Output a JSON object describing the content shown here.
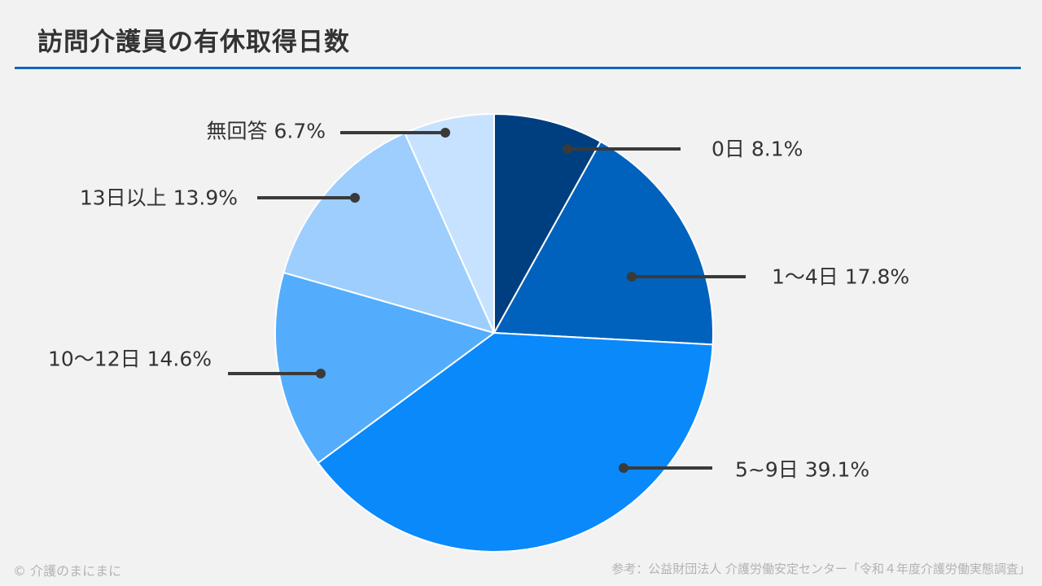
{
  "page": {
    "title": "訪問介護員の有休取得日数",
    "copyright": "© 介護のまにまに",
    "source": "参考：公益財団法人 介護労働安定センター「令和４年度介護労働実態調査」"
  },
  "chart_data": {
    "type": "pie",
    "title": "訪問介護員の有休取得日数",
    "start": "12 o'clock",
    "direction": "clockwise",
    "slices": [
      {
        "label": "0日",
        "value": 8.1,
        "display": "0日 8.1%",
        "color": "#003f7f"
      },
      {
        "label": "1〜4日",
        "value": 17.8,
        "display": "1〜4日 17.8%",
        "color": "#0062bd"
      },
      {
        "label": "5~9日",
        "value": 39.1,
        "display": "5~9日 39.1%",
        "color": "#0a89fb"
      },
      {
        "label": "10〜12日",
        "value": 14.6,
        "display": "10〜12日 14.6%",
        "color": "#53adfc"
      },
      {
        "label": "13日以上",
        "value": 13.9,
        "display": "13日以上 13.9%",
        "color": "#9dcefd"
      },
      {
        "label": "無回答",
        "value": 6.7,
        "display": "無回答 6.7%",
        "color": "#c6e2fe"
      }
    ],
    "value_unit": "%",
    "legend": "none",
    "data_labels": "outside with leader lines"
  }
}
